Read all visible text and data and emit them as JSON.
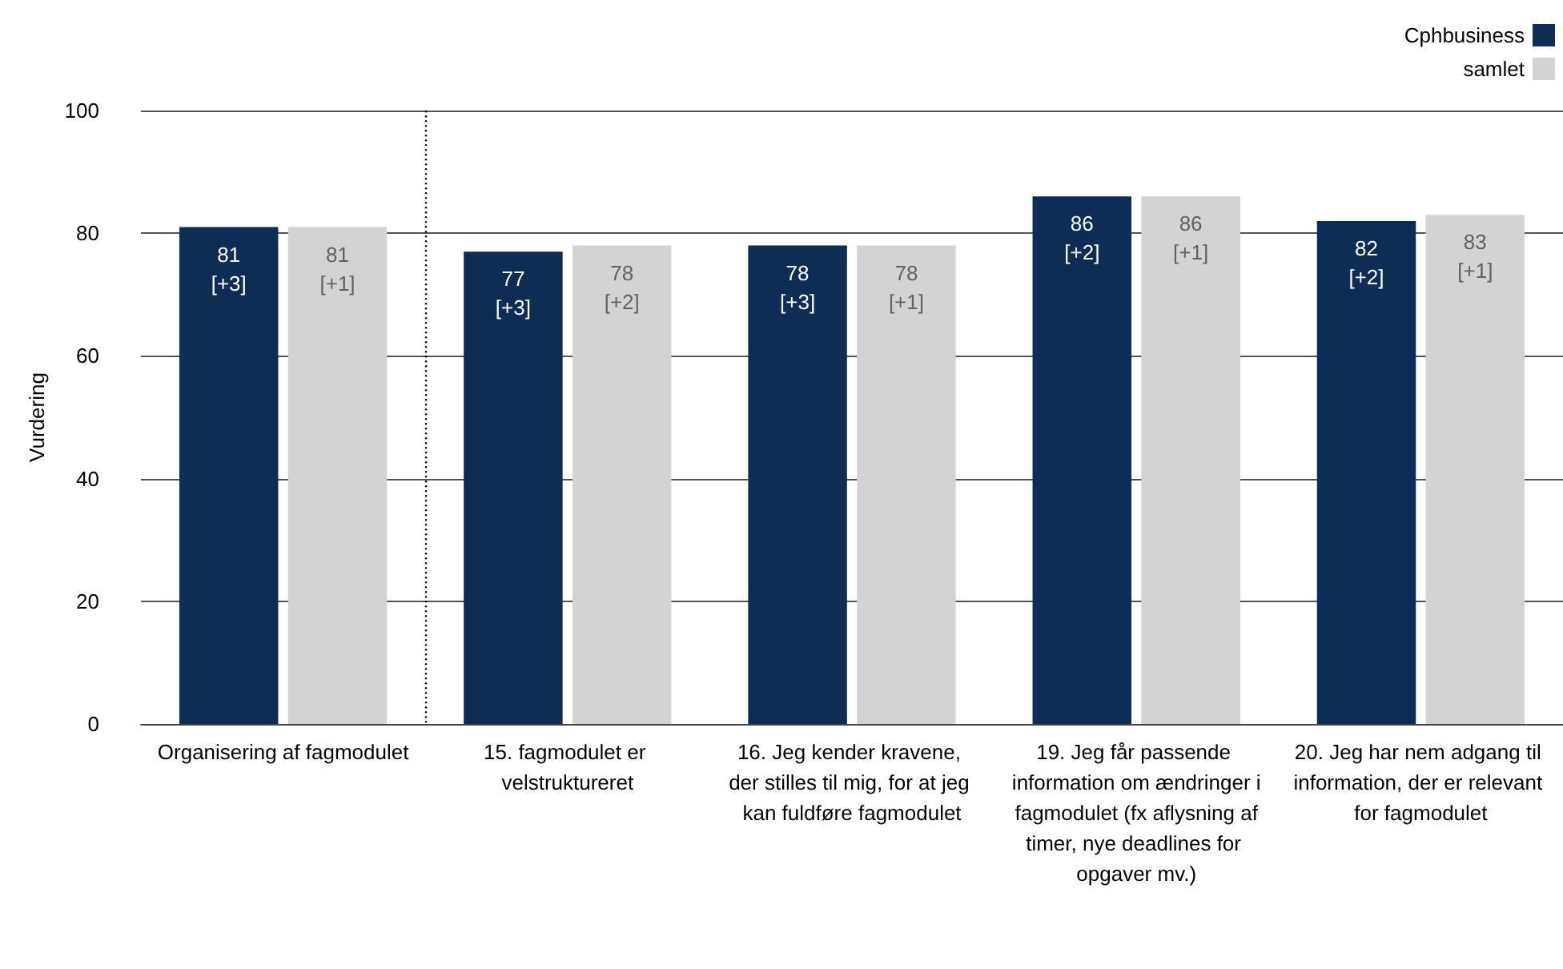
{
  "chart_data": {
    "type": "bar",
    "ylabel": "Vurdering",
    "categories": [
      "Organisering af fagmodulet",
      "15. fagmodulet er velstruktureret",
      "16. Jeg kender kravene, der stilles til mig, for at jeg kan fuldføre fagmodulet",
      "19. Jeg får passende information om ændringer i fagmodulet (fx aflysning af timer, nye deadlines for opgaver mv.)",
      "20. Jeg har nem adgang til information, der er relevant for fagmodulet"
    ],
    "series": [
      {
        "name": "Cphbusiness",
        "color": "#0e2c54",
        "values": [
          81,
          77,
          78,
          86,
          82
        ],
        "value_labels": [
          "81\n[+3]",
          "77\n[+3]",
          "78\n[+3]",
          "86\n[+2]",
          "82\n[+2]"
        ]
      },
      {
        "name": "samlet",
        "color": "#d1d3d4",
        "values": [
          81,
          78,
          78,
          86,
          83
        ],
        "value_labels": [
          "81\n[+1]",
          "78\n[+2]",
          "78\n[+1]",
          "86\n[+1]",
          "83\n[+1]"
        ]
      }
    ],
    "ylim": [
      0,
      100
    ],
    "yticks": [
      0,
      20,
      40,
      60,
      80,
      100
    ],
    "grid": "y",
    "legend": "top right"
  }
}
